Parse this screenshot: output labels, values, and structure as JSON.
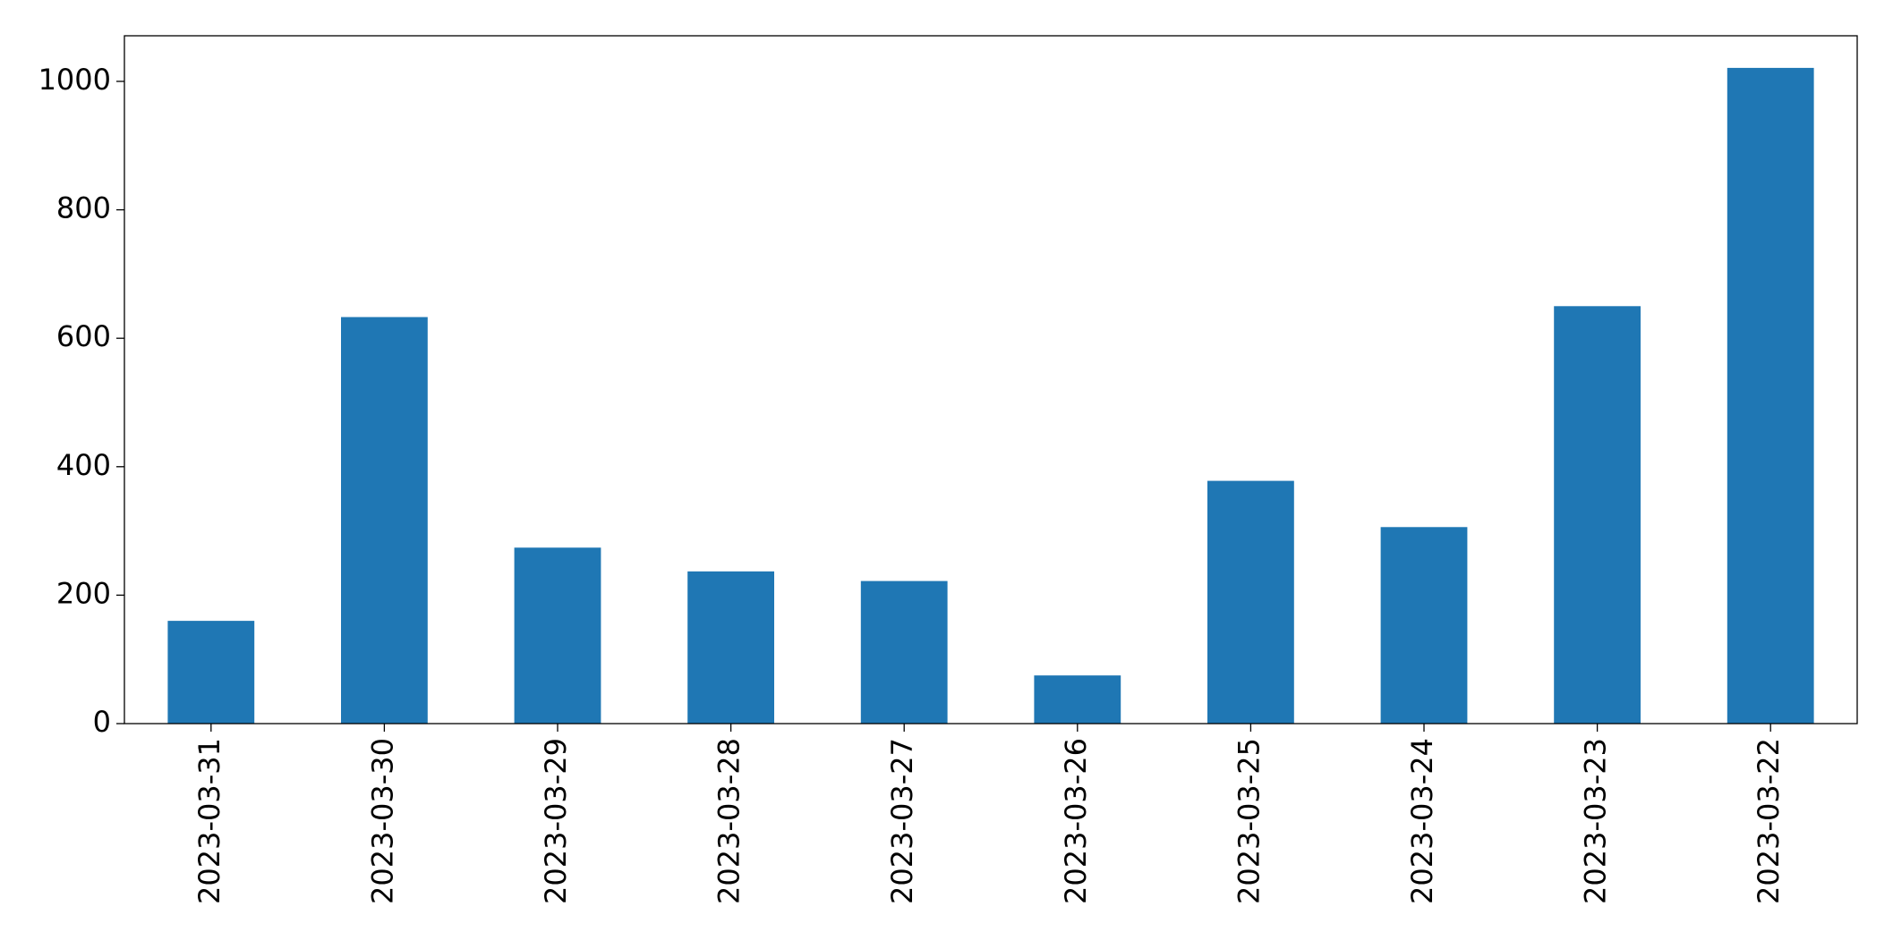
{
  "chart_data": {
    "type": "bar",
    "categories": [
      "2023-03-31",
      "2023-03-30",
      "2023-03-29",
      "2023-03-28",
      "2023-03-27",
      "2023-03-26",
      "2023-03-25",
      "2023-03-24",
      "2023-03-23",
      "2023-03-22"
    ],
    "values": [
      160,
      633,
      274,
      237,
      222,
      75,
      378,
      306,
      650,
      1021
    ],
    "color": "#1f77b4",
    "ylim": [
      0,
      1071
    ],
    "yticks": [
      0,
      200,
      400,
      600,
      800,
      1000
    ],
    "grid": false
  }
}
